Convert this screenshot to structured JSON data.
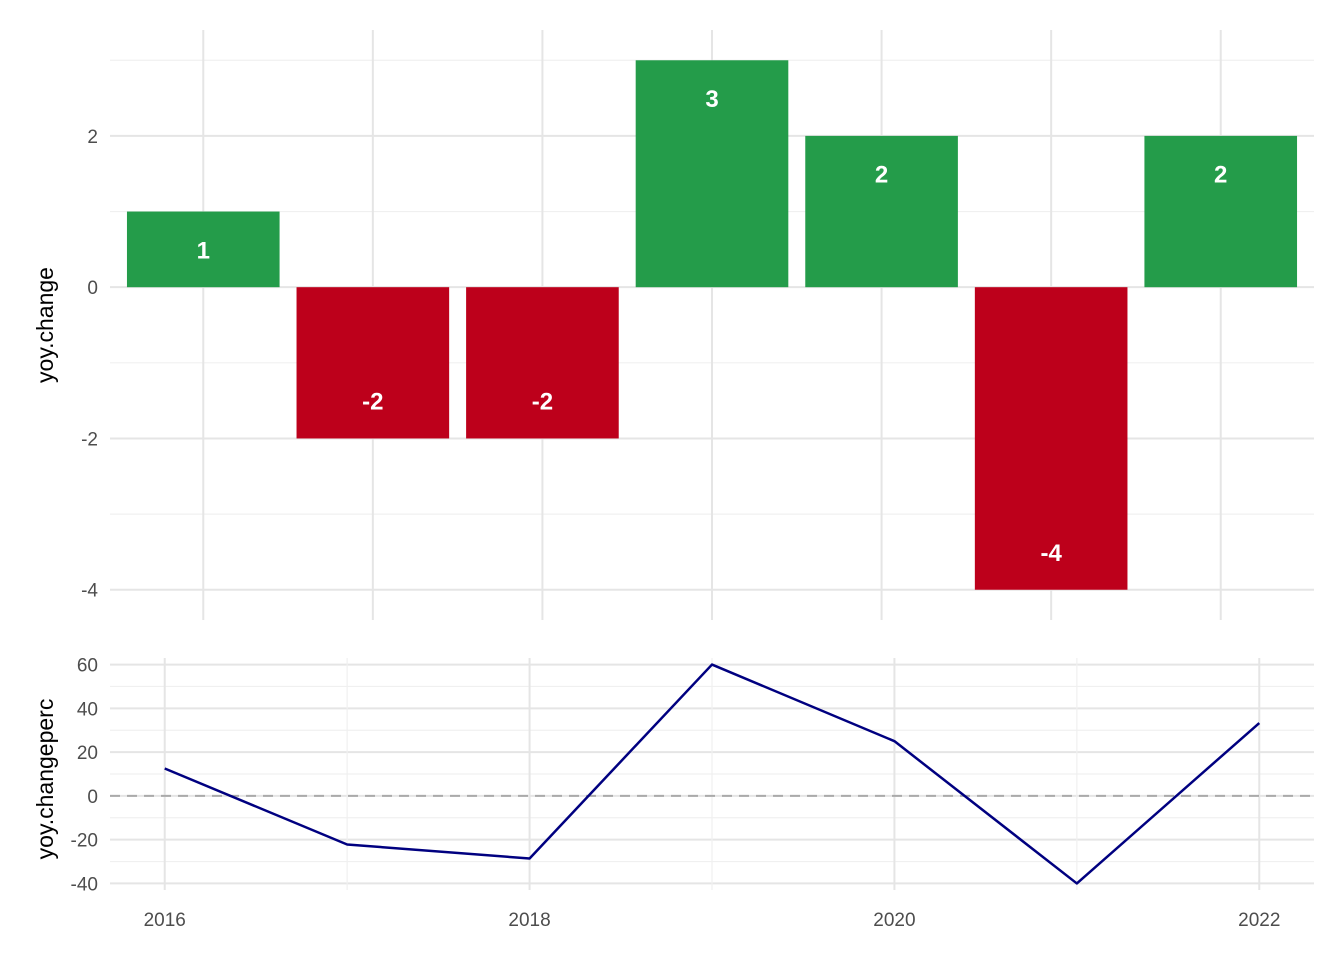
{
  "chart_data": [
    {
      "type": "bar",
      "x": [
        2016,
        2017,
        2018,
        2019,
        2020,
        2021,
        2022
      ],
      "values": [
        1,
        -2,
        -2,
        3,
        2,
        -4,
        2
      ],
      "data_labels": [
        "1",
        "-2",
        "-2",
        "3",
        "2",
        "-4",
        "2"
      ],
      "ylabel": "yoy.change",
      "xlabel": "",
      "yticks": [
        -4,
        -2,
        0,
        2
      ],
      "ytick_labels": [
        "-4",
        "-2",
        "0",
        "2"
      ],
      "ylim": [
        -4.4,
        3.4
      ],
      "xlim": [
        2015.45,
        2022.55
      ],
      "grid": true,
      "colors": {
        "positive": "#249c4a",
        "negative": "#bd001b"
      }
    },
    {
      "type": "line",
      "x": [
        2016,
        2017,
        2018,
        2019,
        2020,
        2021,
        2022
      ],
      "values": [
        12.5,
        -22.2,
        -28.6,
        60,
        25,
        -40,
        33.3
      ],
      "ylabel": "yoy.changeperc",
      "xlabel": "",
      "xticks": [
        2016,
        2018,
        2020,
        2022
      ],
      "xtick_labels": [
        "2016",
        "2018",
        "2020",
        "2022"
      ],
      "yticks": [
        -40,
        -20,
        0,
        20,
        40,
        60
      ],
      "ytick_labels": [
        "-40",
        "-20",
        "0",
        "20",
        "40",
        "60"
      ],
      "ylim": [
        -43,
        63
      ],
      "xlim": [
        2015.7,
        2022.3
      ],
      "grid": true,
      "reference_line": {
        "y": 0,
        "style": "dashed",
        "color": "#aaaaaa"
      },
      "colors": {
        "line": "#000080"
      }
    }
  ]
}
